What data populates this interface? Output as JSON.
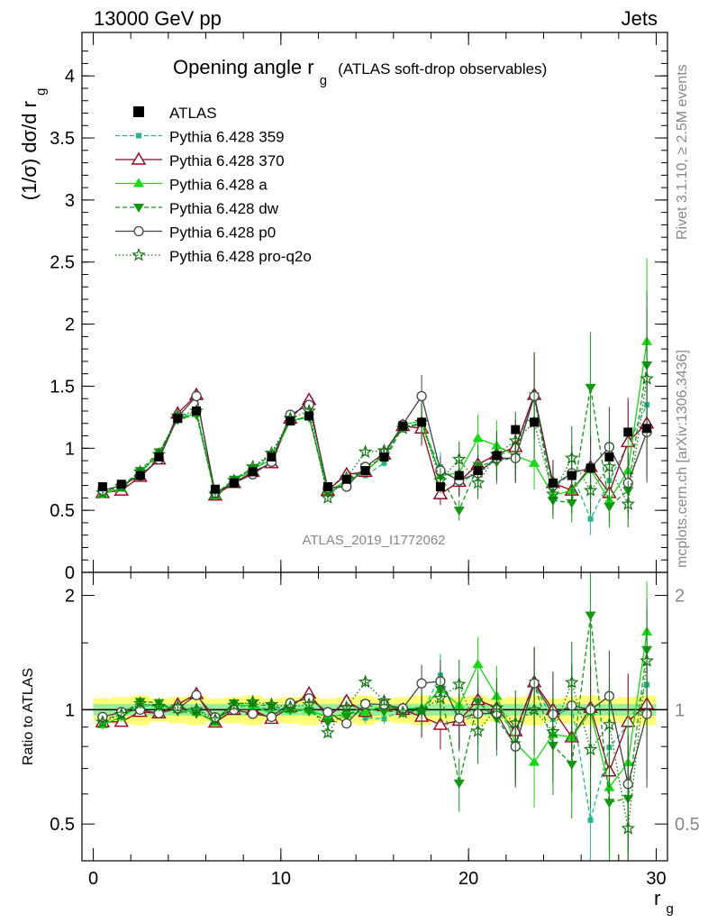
{
  "header": {
    "left": "13000 GeV pp",
    "right": "Jets"
  },
  "main": {
    "title_main": "Opening angle r",
    "title_sub": "g",
    "title_paren": "(ATLAS soft-drop observables)",
    "ylabel_main": "(1/σ) dσ/d r",
    "ylabel_sub": "g",
    "analysis_tag": "ATLAS_2019_I1772062",
    "y_ticks": [
      "0",
      "0.5",
      "1",
      "1.5",
      "2",
      "2.5",
      "3",
      "3.5",
      "4"
    ]
  },
  "ratio": {
    "ylabel": "Ratio to ATLAS",
    "y_ticks": [
      "0.5",
      "1",
      "2"
    ],
    "x_ticks": [
      "0",
      "10",
      "20",
      "30"
    ],
    "xlabel_main": "r",
    "xlabel_sub": "g"
  },
  "side": {
    "rivet": "Rivet 3.1.10, ≥ 2.5M events",
    "mcplots": "mcplots.cern.ch [arXiv:1306.3436]"
  },
  "chart_data": {
    "type": "line",
    "x": [
      0.5,
      1.5,
      2.5,
      3.5,
      4.5,
      5.5,
      6.5,
      7.5,
      8.5,
      9.5,
      10.5,
      11.5,
      12.5,
      13.5,
      14.5,
      15.5,
      16.5,
      17.5,
      18.5,
      19.5,
      20.5,
      21.5,
      22.5,
      23.5,
      24.5,
      25.5,
      26.5,
      27.5,
      28.5,
      29.5
    ],
    "xlim": [
      -0.6,
      30.6
    ],
    "ylim_main": [
      0,
      4.35
    ],
    "ylim_ratio": [
      0.4,
      2.3
    ],
    "ratio_log_scale": true,
    "data": {
      "name": "ATLAS",
      "values": [
        0.69,
        0.71,
        0.78,
        0.93,
        1.24,
        1.3,
        0.67,
        0.72,
        0.81,
        0.93,
        1.22,
        1.26,
        0.69,
        0.75,
        0.82,
        0.93,
        1.18,
        1.21,
        0.69,
        0.78,
        0.82,
        0.94,
        1.15,
        1.21,
        0.72,
        0.78,
        0.84,
        0.93,
        1.13,
        1.16
      ],
      "band_color": "#ffff77",
      "band_inner_color": "#99ee99"
    },
    "series": [
      {
        "name": "Pythia 6.428 359",
        "color": "#22bb88",
        "values": [
          0.66,
          0.7,
          0.8,
          0.95,
          1.24,
          1.3,
          0.64,
          0.73,
          0.83,
          0.93,
          1.22,
          1.25,
          0.66,
          0.8,
          0.78,
          0.88,
          1.18,
          1.18,
          0.85,
          0.72,
          0.8,
          0.93,
          1.0,
          1.4,
          0.68,
          0.8,
          0.43,
          0.74,
          1.03,
          1.35
        ]
      },
      {
        "name": "Pythia 6.428 370",
        "color": "#990022",
        "values": [
          0.64,
          0.66,
          0.77,
          0.91,
          1.28,
          1.43,
          0.62,
          0.72,
          0.81,
          0.88,
          1.24,
          1.39,
          0.66,
          0.79,
          0.81,
          0.95,
          1.18,
          1.16,
          0.63,
          0.73,
          0.87,
          0.95,
          1.01,
          1.43,
          0.72,
          0.66,
          0.85,
          0.64,
          1.05,
          1.2
        ]
      },
      {
        "name": "Pythia 6.428 a",
        "color": "#11dd11",
        "values": [
          0.63,
          0.68,
          0.8,
          0.96,
          1.24,
          1.28,
          0.62,
          0.74,
          0.83,
          0.91,
          1.22,
          1.26,
          0.66,
          0.73,
          0.81,
          0.95,
          1.19,
          1.22,
          0.78,
          0.8,
          1.08,
          1.02,
          0.94,
          0.88,
          0.62,
          0.66,
          0.83,
          0.58,
          0.82,
          1.86
        ]
      },
      {
        "name": "Pythia 6.428 dw",
        "color": "#119911",
        "values": [
          0.65,
          0.69,
          0.82,
          0.97,
          1.23,
          1.27,
          0.63,
          0.75,
          0.84,
          0.95,
          1.22,
          1.25,
          0.64,
          0.72,
          0.85,
          0.92,
          1.17,
          1.2,
          0.78,
          0.5,
          0.86,
          0.89,
          0.93,
          1.42,
          0.58,
          0.56,
          1.49,
          0.53,
          0.66,
          1.67
        ]
      },
      {
        "name": "Pythia 6.428 p0",
        "color": "#444444",
        "values": [
          0.66,
          0.7,
          0.78,
          0.91,
          1.25,
          1.42,
          0.64,
          0.72,
          0.79,
          0.89,
          1.27,
          1.35,
          0.68,
          0.69,
          0.85,
          0.96,
          1.19,
          1.42,
          0.82,
          0.74,
          0.8,
          0.92,
          0.92,
          1.42,
          0.7,
          0.8,
          0.84,
          1.01,
          0.72,
          1.13
        ]
      },
      {
        "name": "Pythia 6.428 pro-q2o",
        "color": "#117711",
        "values": [
          0.64,
          0.69,
          0.81,
          0.95,
          1.26,
          1.3,
          0.63,
          0.74,
          0.85,
          0.96,
          1.24,
          1.3,
          0.6,
          0.76,
          0.97,
          0.98,
          1.16,
          1.21,
          0.74,
          0.91,
          0.72,
          0.95,
          1.06,
          1.21,
          0.63,
          0.92,
          0.66,
          0.85,
          0.55,
          1.56
        ]
      }
    ]
  }
}
